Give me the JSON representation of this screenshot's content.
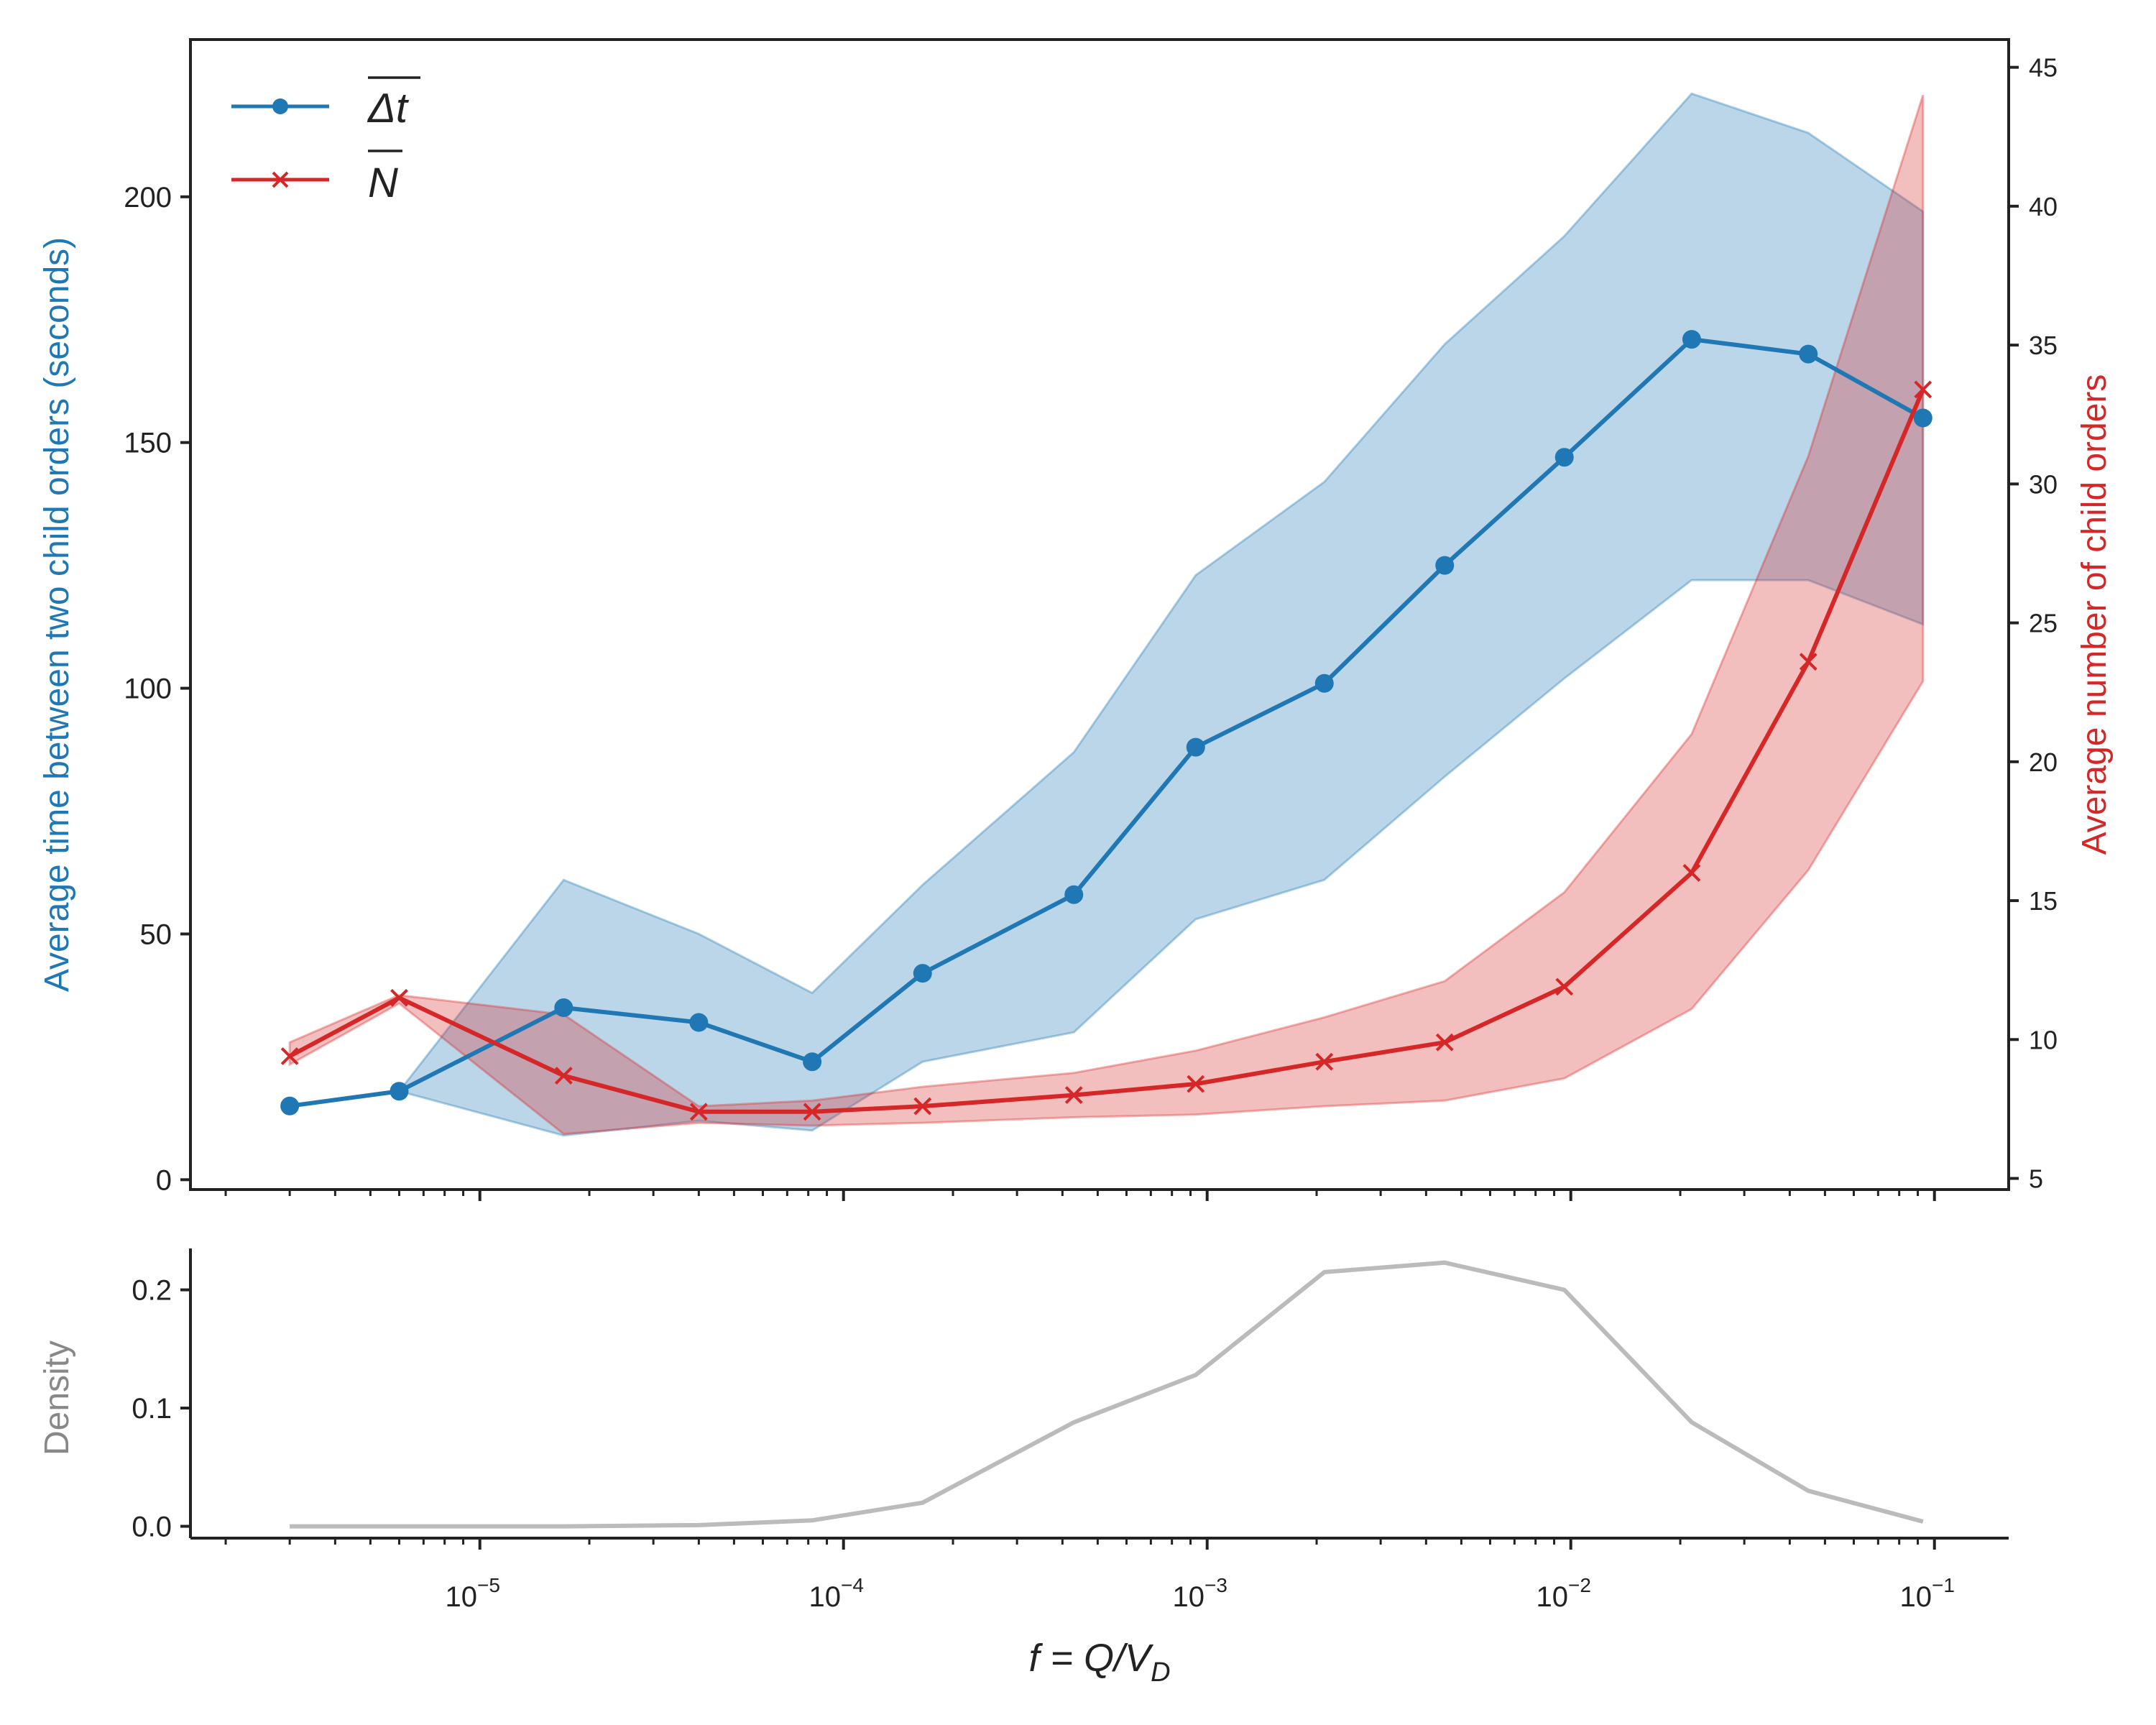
{
  "chart_data": [
    {
      "type": "line",
      "panel": "main",
      "x_scale": "log",
      "x": [
        3e-06,
        6e-06,
        1.7e-05,
        4e-05,
        8.2e-05,
        0.000165,
        0.00043,
        0.00093,
        0.0021,
        0.0045,
        0.0096,
        0.0215,
        0.045,
        0.093
      ],
      "ylabel_left": "Average time between two child orders (seconds)",
      "ylabel_right": "Average number of child orders",
      "ylim_left": [
        -2,
        232
      ],
      "yticks_left": [
        0,
        50,
        100,
        150,
        200
      ],
      "ylim_right": [
        4.6,
        46
      ],
      "yticks_right": [
        5,
        10,
        15,
        20,
        25,
        30,
        35,
        40,
        45
      ],
      "legend_position": "top-left",
      "series": [
        {
          "name": "Δt",
          "axis": "left",
          "color": "#1f77b4",
          "marker": "circle",
          "values": [
            15,
            18,
            35,
            32,
            24,
            42,
            58,
            88,
            101,
            125,
            147,
            171,
            168,
            155
          ],
          "band_lower": [
            15,
            18,
            9,
            12,
            10,
            24,
            30,
            53,
            61,
            82,
            102,
            122,
            122,
            113
          ],
          "band_upper": [
            15,
            18,
            61,
            50,
            38,
            60,
            87,
            123,
            142,
            170,
            192,
            221,
            213,
            197
          ]
        },
        {
          "name": "N",
          "axis": "right",
          "color": "#d62728",
          "marker": "x",
          "values": [
            9.4,
            11.5,
            8.7,
            7.4,
            7.4,
            7.6,
            8.0,
            8.4,
            9.2,
            9.9,
            11.9,
            16.0,
            23.6,
            33.4
          ],
          "band_lower": [
            9.1,
            11.3,
            6.6,
            7.0,
            6.9,
            7.0,
            7.2,
            7.3,
            7.6,
            7.8,
            8.6,
            11.1,
            16.1,
            22.9
          ],
          "band_upper": [
            9.9,
            11.6,
            10.9,
            7.6,
            7.8,
            8.3,
            8.8,
            9.6,
            10.8,
            12.1,
            15.3,
            21.0,
            31.0,
            44.0
          ]
        }
      ]
    },
    {
      "type": "line",
      "panel": "density",
      "x_scale": "log",
      "xlim": [
        1.6e-06,
        0.16
      ],
      "xticks": [
        "10",
        "10",
        "10",
        "10",
        "10"
      ],
      "xtick_exponents": [
        "−5",
        "−4",
        "−3",
        "−2",
        "−1"
      ],
      "xlabel": "f = Q/V",
      "xlabel_subscript": "D",
      "ylabel": "Density",
      "ylim": [
        -0.01,
        0.235
      ],
      "yticks": [
        "0.0",
        "0.1",
        "0.2"
      ],
      "color": "#bbbbbb",
      "x": [
        3e-06,
        6e-06,
        1.7e-05,
        4e-05,
        8.2e-05,
        0.000165,
        0.00043,
        0.00093,
        0.0021,
        0.0045,
        0.0096,
        0.0215,
        0.045,
        0.093
      ],
      "values": [
        0.0,
        0.0,
        0.0,
        0.001,
        0.005,
        0.02,
        0.088,
        0.128,
        0.215,
        0.223,
        0.2,
        0.088,
        0.03,
        0.004
      ]
    }
  ],
  "colors": {
    "blue": "#1f77b4",
    "red": "#d62728",
    "density": "#bbbbbb",
    "axis": "#222222"
  }
}
